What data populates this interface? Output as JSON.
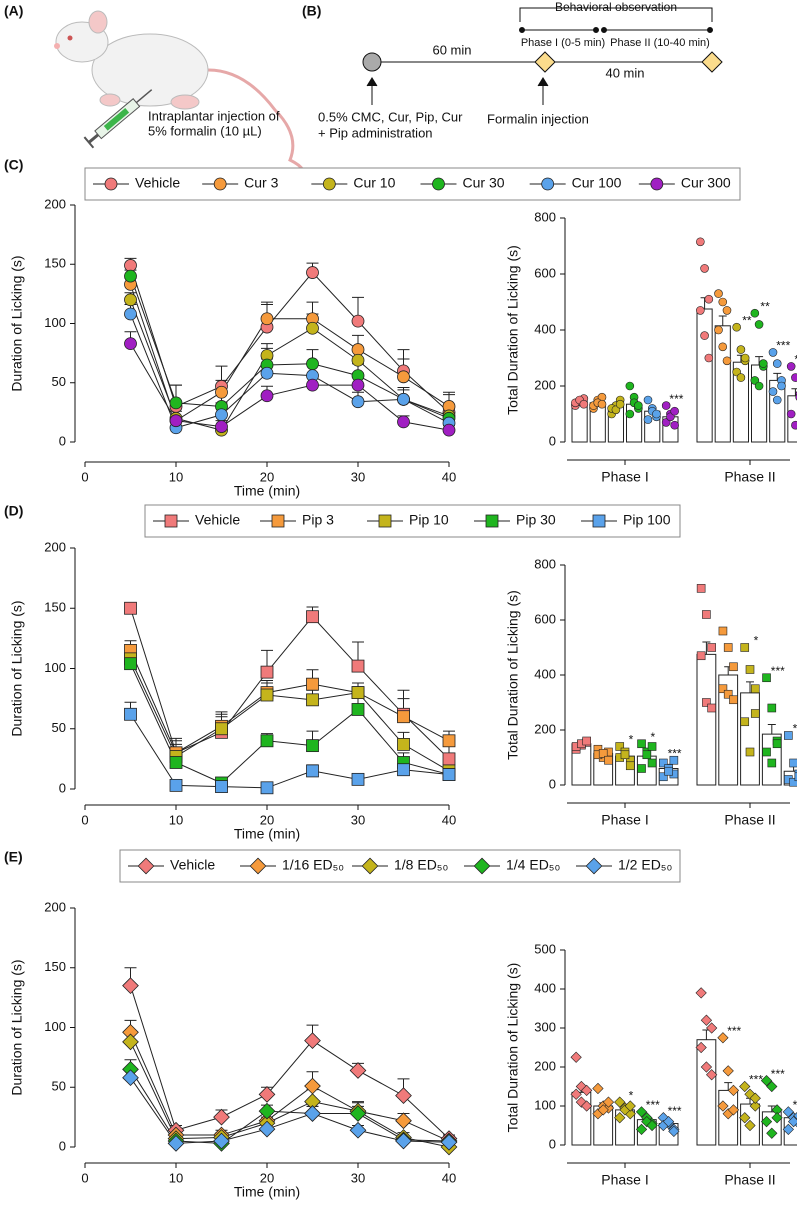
{
  "panels": {
    "a": {
      "label": "(A)",
      "caption": [
        "Intraplantar injection of",
        "5% formalin (10 µL)"
      ]
    },
    "b": {
      "label": "(B)",
      "bracket": "Behavioral observation",
      "phase1": "Phase I (0-5 min)",
      "phase2": "Phase II (10-40 min)",
      "interval1": "60 min",
      "interval2": "40 min",
      "admin": [
        "0.5% CMC, Cur, Pip, Cur",
        "+ Pip administration"
      ],
      "injection": "Formalin injection"
    },
    "c": {
      "label": "(C)"
    },
    "d": {
      "label": "(D)"
    },
    "e": {
      "label": "(E)"
    }
  },
  "chart_data": [
    {
      "type": "line",
      "marker": "circle",
      "xlabel": "Time (min)",
      "ylabel": "Duration of Licking (s)",
      "x": [
        5,
        10,
        15,
        20,
        25,
        30,
        35,
        40
      ],
      "xlim": [
        0,
        40
      ],
      "xticks": [
        0,
        10,
        20,
        30,
        40
      ],
      "ylim": [
        0,
        200
      ],
      "yticks": [
        0,
        50,
        100,
        150,
        200
      ],
      "series": [
        {
          "name": "Vehicle",
          "color": "#f07a7a",
          "values": [
            149,
            30,
            47,
            97,
            143,
            102,
            60,
            25
          ],
          "errors": [
            6,
            18,
            17,
            21,
            8,
            20,
            18,
            15
          ]
        },
        {
          "name": "Cur 3",
          "color": "#f59a3c",
          "values": [
            133,
            18,
            42,
            104,
            104,
            78,
            55,
            30
          ],
          "errors": [
            5,
            15,
            10,
            12,
            14,
            12,
            15,
            12
          ]
        },
        {
          "name": "Cur 10",
          "color": "#c4b41c",
          "values": [
            120,
            20,
            10,
            73,
            96,
            69,
            36,
            22
          ],
          "errors": [
            6,
            8,
            3,
            10,
            12,
            10,
            8,
            8
          ]
        },
        {
          "name": "Cur 30",
          "color": "#1fb51f",
          "values": [
            140,
            33,
            30,
            65,
            66,
            56,
            36,
            20
          ],
          "errors": [
            5,
            15,
            12,
            14,
            12,
            10,
            10,
            8
          ]
        },
        {
          "name": "Cur 100",
          "color": "#5aa2ea",
          "values": [
            108,
            12,
            23,
            58,
            56,
            34,
            36,
            16
          ],
          "errors": [
            8,
            8,
            10,
            12,
            10,
            8,
            10,
            6
          ]
        },
        {
          "name": "Cur 300",
          "color": "#a01fc2",
          "values": [
            83,
            18,
            13,
            39,
            48,
            48,
            17,
            10
          ],
          "errors": [
            10,
            8,
            5,
            8,
            8,
            10,
            5,
            4
          ]
        }
      ]
    },
    {
      "type": "bar",
      "marker": "circle",
      "ylabel": "Total Duration of Licking (s)",
      "categories": [
        "Phase I",
        "Phase II"
      ],
      "ylim": [
        0,
        800
      ],
      "yticks": [
        0,
        200,
        400,
        600,
        800
      ],
      "series": [
        {
          "color": "#f07a7a",
          "values": [
            145,
            475
          ],
          "errors": [
            8,
            40
          ],
          "labels": [
            null,
            null
          ],
          "points": [
            [
              130,
              145,
              155,
              140,
              150,
              135
            ],
            [
              715,
              620,
              510,
              470,
              380,
              300
            ]
          ]
        },
        {
          "color": "#f59a3c",
          "values": [
            140,
            415
          ],
          "errors": [
            10,
            35
          ],
          "labels": [
            null,
            null
          ],
          "points": [
            [
              120,
              150,
              160,
              130,
              140,
              135
            ],
            [
              530,
              500,
              470,
              400,
              340,
              290
            ]
          ]
        },
        {
          "color": "#c4b41c",
          "values": [
            125,
            285
          ],
          "errors": [
            8,
            25
          ],
          "labels": [
            null,
            "**"
          ],
          "points": [
            [
              100,
              130,
              150,
              120,
              115,
              135
            ],
            [
              410,
              330,
              290,
              250,
              230,
              300
            ]
          ]
        },
        {
          "color": "#1fb51f",
          "values": [
            135,
            275
          ],
          "errors": [
            12,
            30
          ],
          "labels": [
            null,
            "**"
          ],
          "points": [
            [
              200,
              160,
              120,
              100,
              140,
              130
            ],
            [
              460,
              420,
              270,
              220,
              200,
              280
            ]
          ]
        },
        {
          "color": "#5aa2ea",
          "values": [
            110,
            220
          ],
          "errors": [
            12,
            25
          ],
          "labels": [
            null,
            "***"
          ],
          "points": [
            [
              150,
              120,
              90,
              80,
              110,
              100
            ],
            [
              320,
              280,
              220,
              180,
              150,
              200
            ]
          ]
        },
        {
          "color": "#a01fc2",
          "values": [
            90,
            165
          ],
          "errors": [
            15,
            25
          ],
          "labels": [
            "***",
            "***"
          ],
          "points": [
            [
              130,
              100,
              60,
              70,
              90,
              110
            ],
            [
              270,
              230,
              170,
              100,
              60,
              160
            ]
          ]
        }
      ]
    },
    {
      "type": "line",
      "marker": "square",
      "xlabel": "Time (min)",
      "ylabel": "Duration of Licking (s)",
      "x": [
        5,
        10,
        15,
        20,
        25,
        30,
        35,
        40
      ],
      "xlim": [
        0,
        40
      ],
      "xticks": [
        0,
        10,
        20,
        30,
        40
      ],
      "ylim": [
        0,
        200
      ],
      "yticks": [
        0,
        50,
        100,
        150,
        200
      ],
      "series": [
        {
          "name": "Vehicle",
          "color": "#f07a7a",
          "values": [
            150,
            30,
            47,
            97,
            143,
            102,
            62,
            25
          ],
          "errors": [
            4,
            12,
            15,
            18,
            8,
            20,
            20,
            15
          ]
        },
        {
          "name": "Pip 3",
          "color": "#f59a3c",
          "values": [
            115,
            30,
            52,
            80,
            87,
            80,
            60,
            40
          ],
          "errors": [
            8,
            10,
            12,
            10,
            12,
            8,
            15,
            8
          ]
        },
        {
          "name": "Pip 10",
          "color": "#c4b41c",
          "values": [
            108,
            27,
            50,
            78,
            74,
            80,
            37,
            15
          ],
          "errors": [
            6,
            10,
            10,
            10,
            8,
            8,
            10,
            6
          ]
        },
        {
          "name": "Pip 30",
          "color": "#1fb51f",
          "values": [
            104,
            22,
            5,
            40,
            36,
            66,
            22,
            12
          ],
          "errors": [
            6,
            8,
            3,
            6,
            12,
            10,
            8,
            6
          ]
        },
        {
          "name": "Pip 100",
          "color": "#5aa2ea",
          "values": [
            62,
            3,
            2,
            1,
            15,
            8,
            16,
            12
          ],
          "errors": [
            10,
            2,
            2,
            2,
            5,
            4,
            5,
            4
          ]
        }
      ]
    },
    {
      "type": "bar",
      "marker": "square",
      "ylabel": "Total Duration of Licking (s)",
      "categories": [
        "Phase I",
        "Phase II"
      ],
      "ylim": [
        0,
        800
      ],
      "yticks": [
        0,
        200,
        400,
        600,
        800
      ],
      "series": [
        {
          "color": "#f07a7a",
          "values": [
            150,
            475
          ],
          "errors": [
            8,
            45
          ],
          "labels": [
            null,
            null
          ],
          "points": [
            [
              130,
              145,
              155,
              140,
              150,
              160
            ],
            [
              715,
              620,
              500,
              470,
              300,
              280
            ]
          ]
        },
        {
          "color": "#f59a3c",
          "values": [
            115,
            400
          ],
          "errors": [
            8,
            30
          ],
          "labels": [
            null,
            null
          ],
          "points": [
            [
              130,
              100,
              120,
              110,
              115,
              90
            ],
            [
              560,
              500,
              430,
              350,
              330,
              310
            ]
          ]
        },
        {
          "color": "#c4b41c",
          "values": [
            105,
            335
          ],
          "errors": [
            10,
            40
          ],
          "labels": [
            "*",
            "*"
          ],
          "points": [
            [
              140,
              120,
              90,
              100,
              110,
              70
            ],
            [
              500,
              420,
              350,
              230,
              120,
              260
            ]
          ]
        },
        {
          "color": "#1fb51f",
          "values": [
            105,
            185
          ],
          "errors": [
            12,
            35
          ],
          "labels": [
            "*",
            "***"
          ],
          "points": [
            [
              150,
              120,
              80,
              60,
              110,
              140
            ],
            [
              390,
              280,
              160,
              120,
              80,
              150
            ]
          ]
        },
        {
          "color": "#5aa2ea",
          "values": [
            60,
            50
          ],
          "errors": [
            15,
            30
          ],
          "labels": [
            "***",
            "***"
          ],
          "points": [
            [
              80,
              60,
              40,
              30,
              50,
              90
            ],
            [
              180,
              80,
              40,
              20,
              10,
              30
            ]
          ]
        }
      ]
    },
    {
      "type": "line",
      "marker": "diamond",
      "xlabel": "Time (min)",
      "ylabel": "Duration of Licking (s)",
      "x": [
        5,
        10,
        15,
        20,
        25,
        30,
        35,
        40
      ],
      "xlim": [
        0,
        40
      ],
      "xticks": [
        0,
        10,
        20,
        30,
        40
      ],
      "ylim": [
        0,
        200
      ],
      "yticks": [
        0,
        50,
        100,
        150,
        200
      ],
      "series": [
        {
          "name": "Vehicle",
          "color": "#f07a7a",
          "values": [
            135,
            14,
            25,
            44,
            89,
            64,
            43,
            7
          ],
          "errors": [
            15,
            4,
            6,
            6,
            13,
            6,
            14,
            3
          ]
        },
        {
          "name": "1/16 ED₅₀",
          "color": "#f59a3c",
          "values": [
            96,
            10,
            10,
            22,
            51,
            30,
            22,
            5
          ],
          "errors": [
            10,
            4,
            4,
            6,
            12,
            8,
            6,
            3
          ]
        },
        {
          "name": "1/8 ED₅₀",
          "color": "#c4b41c",
          "values": [
            88,
            7,
            8,
            20,
            38,
            30,
            8,
            0
          ],
          "errors": [
            8,
            3,
            4,
            5,
            10,
            7,
            4,
            2
          ]
        },
        {
          "name": "1/4 ED₅₀",
          "color": "#1fb51f",
          "values": [
            65,
            5,
            3,
            30,
            28,
            28,
            6,
            5
          ],
          "errors": [
            8,
            3,
            2,
            5,
            6,
            6,
            3,
            3
          ]
        },
        {
          "name": "1/2 ED₅₀",
          "color": "#5aa2ea",
          "values": [
            58,
            3,
            5,
            15,
            28,
            14,
            5,
            4
          ],
          "errors": [
            6,
            2,
            2,
            4,
            6,
            4,
            2,
            2
          ]
        }
      ]
    },
    {
      "type": "bar",
      "marker": "diamond",
      "ylabel": "Total Duration of Licking (s)",
      "categories": [
        "Phase I",
        "Phase II"
      ],
      "ylim": [
        0,
        500
      ],
      "yticks": [
        0,
        100,
        200,
        300,
        400,
        500
      ],
      "series": [
        {
          "color": "#f07a7a",
          "values": [
            135,
            270
          ],
          "errors": [
            12,
            25
          ],
          "labels": [
            null,
            null
          ],
          "points": [
            [
              225,
              150,
              140,
              130,
              110,
              100
            ],
            [
              390,
              320,
              300,
              250,
              200,
              180
            ]
          ]
        },
        {
          "color": "#f59a3c",
          "values": [
            100,
            140
          ],
          "errors": [
            8,
            20
          ],
          "labels": [
            null,
            "***"
          ],
          "points": [
            [
              145,
              100,
              95,
              80,
              90,
              110
            ],
            [
              275,
              190,
              140,
              100,
              80,
              90
            ]
          ]
        },
        {
          "color": "#c4b41c",
          "values": [
            90,
            105
          ],
          "errors": [
            8,
            15
          ],
          "labels": [
            "*",
            "***"
          ],
          "points": [
            [
              110,
              95,
              80,
              70,
              90,
              100
            ],
            [
              150,
              130,
              100,
              70,
              50,
              120
            ]
          ]
        },
        {
          "color": "#1fb51f",
          "values": [
            65,
            85
          ],
          "errors": [
            8,
            15
          ],
          "labels": [
            "***",
            "***"
          ],
          "points": [
            [
              85,
              70,
              55,
              40,
              60,
              50
            ],
            [
              165,
              150,
              90,
              60,
              30,
              70
            ]
          ]
        },
        {
          "color": "#5aa2ea",
          "values": [
            55,
            70
          ],
          "errors": [
            6,
            8
          ],
          "labels": [
            "***",
            "***"
          ],
          "points": [
            [
              70,
              55,
              40,
              50,
              60,
              35
            ],
            [
              85,
              70,
              55,
              40,
              60,
              75
            ]
          ]
        }
      ]
    }
  ]
}
